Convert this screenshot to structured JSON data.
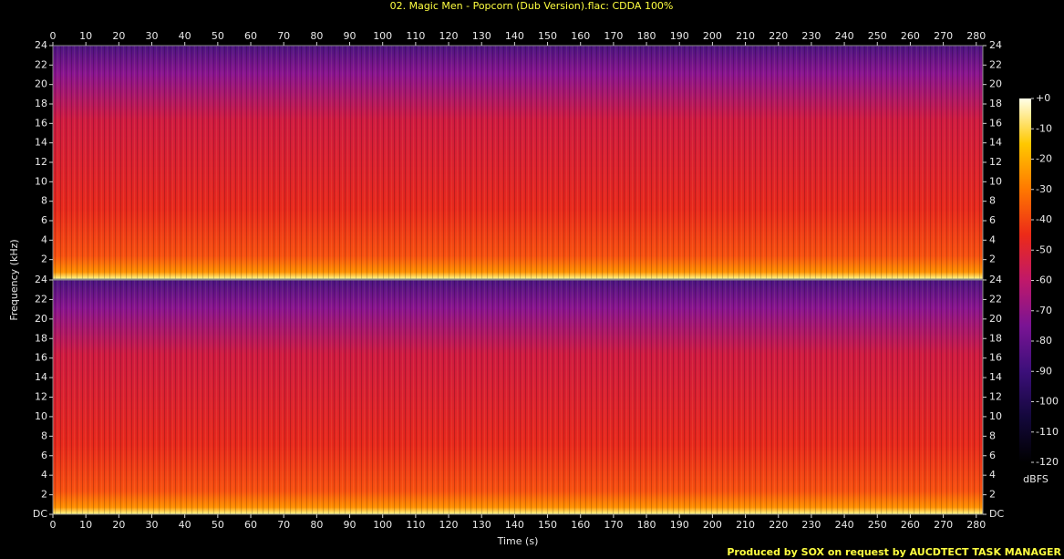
{
  "title": "02. Magic Men - Popcorn (Dub Version).flac: CDDA 100%",
  "footer": "Produced by SOX on request by AUCDTECT TASK MANAGER",
  "chart_data": [
    {
      "type": "spectrogram",
      "ylabel": "Frequency (kHz)",
      "xlim": [
        0,
        282
      ],
      "xticks": [
        0,
        10,
        20,
        30,
        40,
        50,
        60,
        70,
        80,
        90,
        100,
        110,
        120,
        130,
        140,
        150,
        160,
        170,
        180,
        190,
        200,
        210,
        220,
        230,
        240,
        250,
        260,
        270,
        280
      ],
      "ylim": [
        0,
        24
      ],
      "yticks": [
        2,
        4,
        6,
        8,
        10,
        12,
        14,
        16,
        18,
        20,
        22,
        24
      ]
    },
    {
      "type": "spectrogram",
      "xlabel": "Time (s)",
      "xlim": [
        0,
        282
      ],
      "xticks": [
        0,
        10,
        20,
        30,
        40,
        50,
        60,
        70,
        80,
        90,
        100,
        110,
        120,
        130,
        140,
        150,
        160,
        170,
        180,
        190,
        200,
        210,
        220,
        230,
        240,
        250,
        260,
        270,
        280
      ],
      "ylim": [
        0,
        24
      ],
      "yticks": [
        {
          "value": 0,
          "label": "DC"
        },
        2,
        4,
        6,
        8,
        10,
        12,
        14,
        16,
        18,
        20,
        22,
        24
      ]
    }
  ],
  "colorbar": {
    "label": "dBFS",
    "lim": [
      -120,
      0
    ],
    "ticks": [
      {
        "value": 0,
        "label": "+0"
      },
      -10,
      -20,
      -30,
      -40,
      -50,
      -60,
      -70,
      -80,
      -90,
      -100,
      -110,
      -120
    ],
    "colors": [
      "#000000",
      "#14083c",
      "#3c0f7a",
      "#7a1494",
      "#c0186a",
      "#ec2a18",
      "#ff7800",
      "#ffc800",
      "#ffffe8"
    ]
  }
}
